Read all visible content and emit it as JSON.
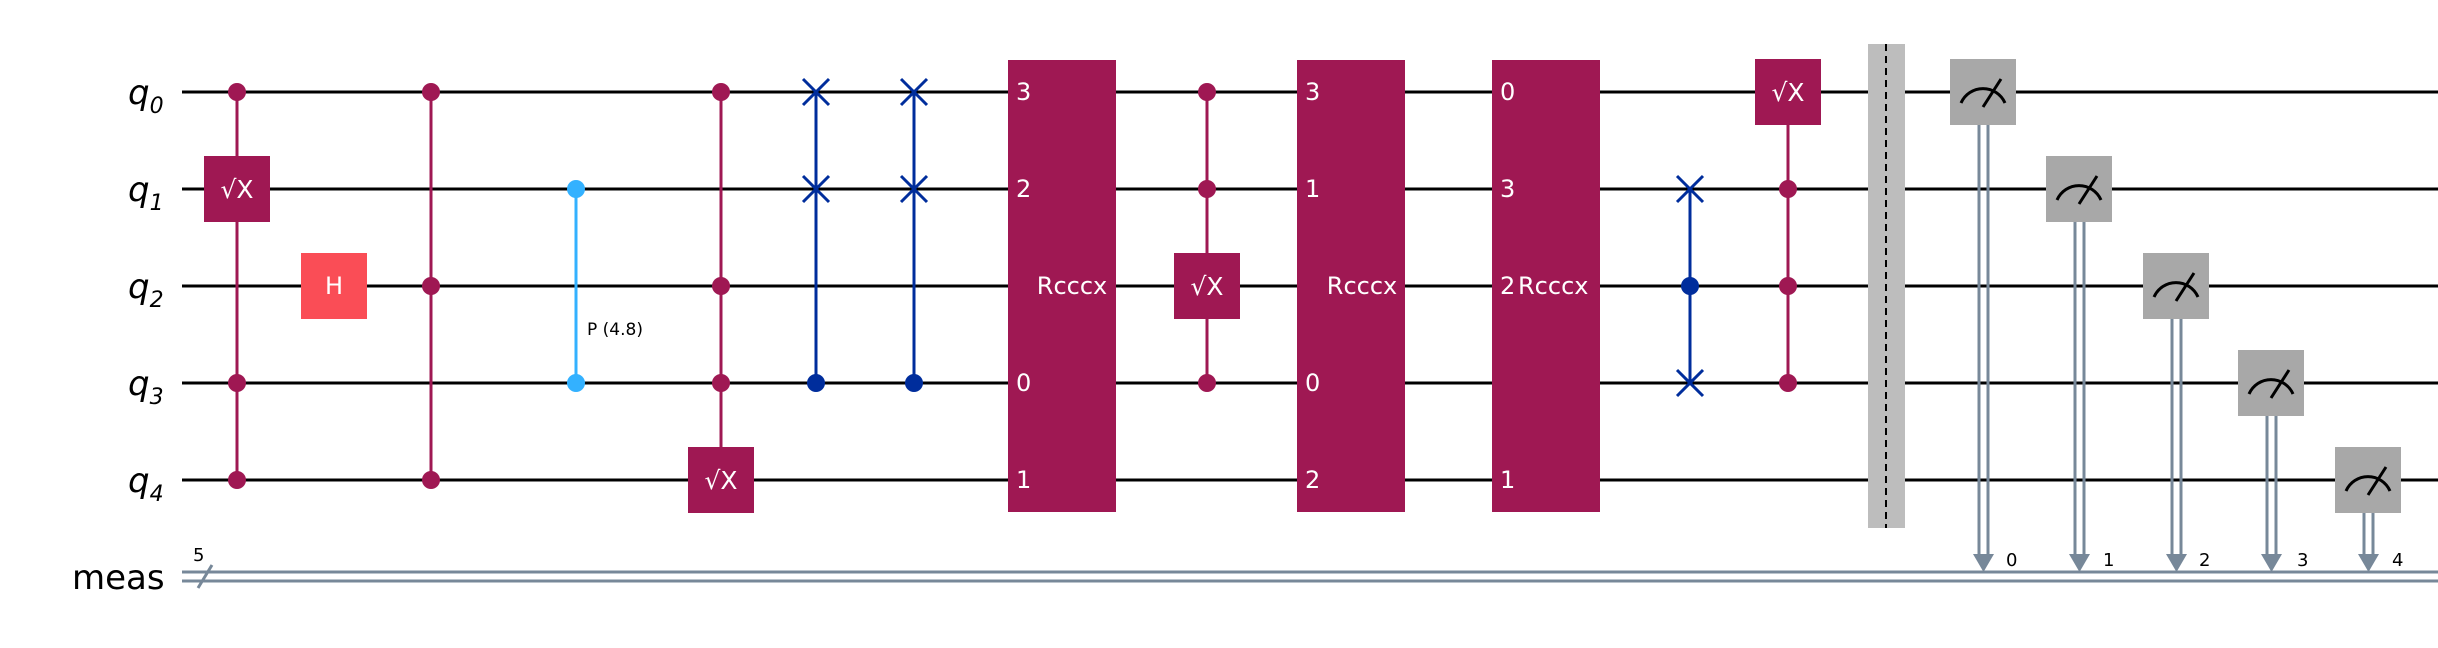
{
  "colors": {
    "wire": "#000000",
    "classical": "#778899",
    "gate_magenta": "#9f1853",
    "gate_h": "#fa4d56",
    "cphase": "#33b1ff",
    "swap": "#002d9c",
    "measure": "#a8a8a8",
    "barrier": "#bdbdbd",
    "gate_text": "#ffffff"
  },
  "wires": {
    "qubits": [
      {
        "base": "q",
        "index": "0"
      },
      {
        "base": "q",
        "index": "1"
      },
      {
        "base": "q",
        "index": "2"
      },
      {
        "base": "q",
        "index": "3"
      },
      {
        "base": "q",
        "index": "4"
      }
    ],
    "classical": {
      "label": "meas",
      "bits": "5"
    }
  },
  "gates": {
    "sx_label": "√X",
    "h_label": "H",
    "p_label": "P (4.8)",
    "rcccx_label_a": "Rcccx",
    "rcccx_label_b": "Rcccx",
    "rcccx_label_c": "Rcccx",
    "rcccx_a_ports": [
      "3",
      "2",
      "0",
      "1"
    ],
    "rcccx_b_ports": [
      "3",
      "1",
      "0",
      "2"
    ],
    "rcccx_c_ports": [
      "0",
      "3",
      "2",
      "1"
    ]
  },
  "measurements": {
    "bit_labels": [
      "0",
      "1",
      "2",
      "3",
      "4"
    ]
  }
}
